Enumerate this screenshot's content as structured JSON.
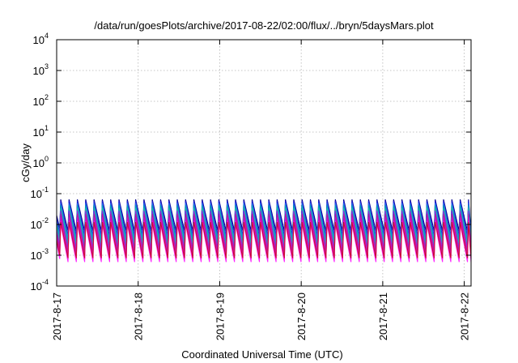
{
  "chart_data": {
    "type": "line",
    "title": "/data/run/goesPlots/archive/2017-08-22/02:00/flux/../bryn/5daysMars.plot",
    "xlabel": "Coordinated Universal Time (UTC)",
    "ylabel": "cGy/day",
    "yscale": "log",
    "ylim": [
      0.0001,
      10000
    ],
    "xlim": [
      "2017-8-17",
      "2017-8-22 02:00"
    ],
    "x_ticks": [
      "2017-8-17",
      "2017-8-18",
      "2017-8-19",
      "2017-8-20",
      "2017-8-21",
      "2017-8-22"
    ],
    "y_ticks": [
      {
        "base": "10",
        "exp": "-4"
      },
      {
        "base": "10",
        "exp": "-3"
      },
      {
        "base": "10",
        "exp": "-2"
      },
      {
        "base": "10",
        "exp": "-1"
      },
      {
        "base": "10",
        "exp": "0"
      },
      {
        "base": "10",
        "exp": "1"
      },
      {
        "base": "10",
        "exp": "2"
      },
      {
        "base": "10",
        "exp": "3"
      },
      {
        "base": "10",
        "exp": "4"
      }
    ],
    "grid": true,
    "legend": false,
    "pattern": {
      "cycle_hours": 2.45,
      "first_peak_hours": 0.9,
      "note_peaks": "sawtooth: values rise sharply at each cycle start then decay until next cycle"
    },
    "series": [
      {
        "color": "#00008b",
        "peak": 0.065,
        "trough": 0.006
      },
      {
        "color": "#1e1ed2",
        "peak": 0.058,
        "trough": 0.0042
      },
      {
        "color": "#2a6df0",
        "peak": 0.05,
        "trough": 0.0034
      },
      {
        "color": "#00a3b8",
        "peak": 0.042,
        "trough": 0.0027
      },
      {
        "color": "#20c0a0",
        "peak": 0.034,
        "trough": 0.0021
      },
      {
        "color": "#8a2be2",
        "peak": 0.028,
        "trough": 0.0016
      },
      {
        "color": "#b21aa0",
        "peak": 0.022,
        "trough": 0.0012
      },
      {
        "color": "#d010c0",
        "peak": 0.017,
        "trough": 0.00095
      },
      {
        "color": "#ff00e0",
        "peak": 0.013,
        "trough": 0.00075
      },
      {
        "color": "#ff20ff",
        "peak": 0.0105,
        "trough": 0.0006
      },
      {
        "color": "#c8102e",
        "peak": 0.012,
        "trough": 0.0008
      }
    ]
  }
}
